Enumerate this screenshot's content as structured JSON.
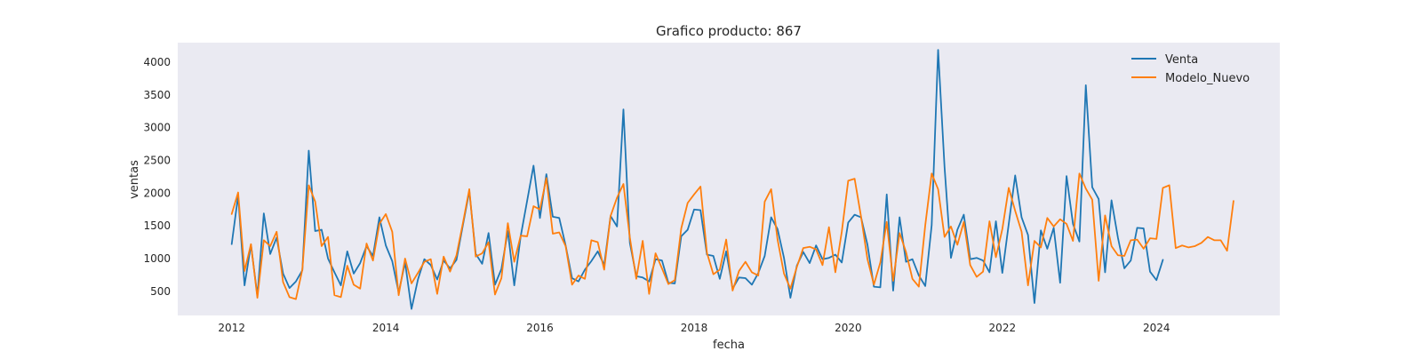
{
  "chart_data": {
    "type": "line",
    "title": "Grafico producto: 867",
    "xlabel": "fecha",
    "ylabel": "ventas",
    "xlim": [
      2011.3,
      2025.6
    ],
    "ylim": [
      130,
      4300
    ],
    "x_ticks": [
      2012,
      2014,
      2016,
      2018,
      2020,
      2022,
      2024
    ],
    "y_ticks": [
      500,
      1000,
      1500,
      2000,
      2500,
      3000,
      3500,
      4000
    ],
    "grid": false,
    "legend_position": "top-right",
    "background_color": "#eaeaf2",
    "series": [
      {
        "name": "Venta",
        "color": "#1f77b4",
        "x_start": 2012.0,
        "step": 0.08333,
        "values": [
          1220,
          1960,
          590,
          1210,
          430,
          1690,
          1070,
          1320,
          770,
          550,
          650,
          820,
          2650,
          1420,
          1440,
          1000,
          790,
          590,
          1110,
          770,
          930,
          1190,
          1040,
          1630,
          1200,
          960,
          480,
          940,
          230,
          680,
          990,
          900,
          680,
          970,
          850,
          980,
          1510,
          2030,
          1070,
          920,
          1390,
          600,
          840,
          1420,
          590,
          1340,
          1880,
          2420,
          1620,
          2290,
          1640,
          1620,
          1200,
          700,
          650,
          830,
          960,
          1110,
          900,
          1650,
          1490,
          3280,
          1240,
          730,
          710,
          650,
          990,
          970,
          630,
          620,
          1340,
          1440,
          1750,
          1740,
          1060,
          1040,
          690,
          1110,
          540,
          710,
          700,
          600,
          780,
          1040,
          1630,
          1450,
          1010,
          400,
          890,
          1100,
          930,
          1200,
          990,
          1010,
          1060,
          940,
          1550,
          1670,
          1630,
          1210,
          570,
          560,
          1980,
          510,
          1630,
          950,
          990,
          740,
          580,
          1510,
          4190,
          2400,
          1010,
          1440,
          1670,
          990,
          1010,
          970,
          790,
          1570,
          780,
          1530,
          2270,
          1630,
          1360,
          320,
          1430,
          1150,
          1470,
          630,
          2260,
          1530,
          1260,
          3650,
          2090,
          1910,
          790,
          1890,
          1320,
          850,
          970,
          1470,
          1460,
          800,
          670,
          980
        ]
      },
      {
        "name": "Modelo_Nuevo",
        "color": "#ff7f0e",
        "x_start": 2012.0,
        "step": 0.08333,
        "values": [
          1680,
          2010,
          810,
          1220,
          400,
          1280,
          1190,
          1410,
          640,
          410,
          380,
          830,
          2120,
          1870,
          1190,
          1330,
          440,
          410,
          890,
          600,
          540,
          1230,
          970,
          1530,
          1680,
          1410,
          440,
          1000,
          620,
          780,
          950,
          990,
          460,
          1030,
          800,
          1050,
          1540,
          2060,
          1030,
          1080,
          1250,
          450,
          700,
          1540,
          950,
          1350,
          1340,
          1800,
          1750,
          2230,
          1380,
          1400,
          1190,
          600,
          740,
          690,
          1280,
          1250,
          830,
          1650,
          1930,
          2140,
          1320,
          690,
          1270,
          460,
          1080,
          850,
          610,
          670,
          1460,
          1850,
          1980,
          2100,
          1090,
          760,
          830,
          1290,
          510,
          810,
          950,
          790,
          740,
          1870,
          2060,
          1290,
          770,
          540,
          870,
          1160,
          1180,
          1140,
          900,
          1480,
          790,
          1410,
          2190,
          2220,
          1640,
          990,
          600,
          940,
          1560,
          660,
          1390,
          1100,
          690,
          570,
          1510,
          2300,
          2060,
          1330,
          1490,
          1210,
          1560,
          900,
          720,
          800,
          1570,
          1020,
          1450,
          2080,
          1730,
          1410,
          590,
          1270,
          1170,
          1620,
          1490,
          1600,
          1530,
          1270,
          2300,
          2070,
          1900,
          660,
          1660,
          1190,
          1050,
          1040,
          1280,
          1290,
          1150,
          1310,
          1300,
          2080,
          2120,
          1160,
          1200,
          1170,
          1190,
          1240,
          1330,
          1280,
          1280,
          1120,
          1880
        ]
      }
    ]
  }
}
